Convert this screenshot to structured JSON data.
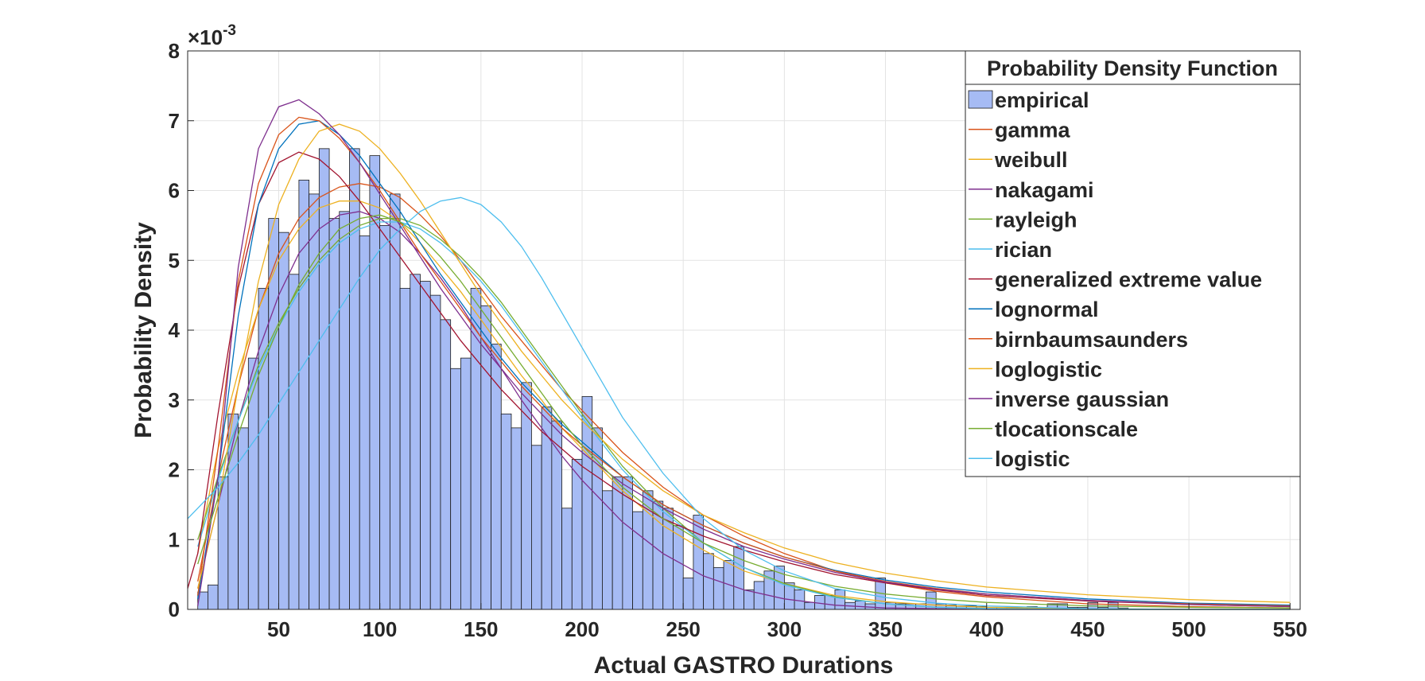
{
  "chart_data": {
    "type": "bar",
    "xlabel": "Actual GASTRO Durations",
    "ylabel": "Probability Density",
    "y_exponent_label": "×10",
    "y_exponent_power": "-3",
    "xlim": [
      5,
      555
    ],
    "ylim": [
      0,
      8
    ],
    "xticks": [
      50,
      100,
      150,
      200,
      250,
      300,
      350,
      400,
      450,
      500,
      550
    ],
    "yticks": [
      0,
      1,
      2,
      3,
      4,
      5,
      6,
      7,
      8
    ],
    "xtick_labels": [
      "50",
      "100",
      "150",
      "200",
      "250",
      "300",
      "350",
      "400",
      "450",
      "500",
      "550"
    ],
    "ytick_labels": [
      "0",
      "1",
      "2",
      "3",
      "4",
      "5",
      "6",
      "7",
      "8"
    ],
    "grid": true,
    "legend_title": "Probability Density Function",
    "legend_position": "top-right",
    "histogram": {
      "name": "empirical",
      "color": "#a6bbf4",
      "start": 10,
      "bin_width": 5,
      "values": [
        0.25,
        0.35,
        1.9,
        2.8,
        2.6,
        3.6,
        4.6,
        5.6,
        5.4,
        4.8,
        6.15,
        5.95,
        6.6,
        5.6,
        5.7,
        6.6,
        5.35,
        6.5,
        5.5,
        5.95,
        4.6,
        4.8,
        4.7,
        4.5,
        4.15,
        3.45,
        3.6,
        4.6,
        4.35,
        3.8,
        2.8,
        2.6,
        3.25,
        2.35,
        2.9,
        2.7,
        1.45,
        2.15,
        3.05,
        2.6,
        1.7,
        1.9,
        1.9,
        1.4,
        1.7,
        1.55,
        1.45,
        1.2,
        0.45,
        1.35,
        0.8,
        0.6,
        0.7,
        0.9,
        0.28,
        0.4,
        0.55,
        0.62,
        0.38,
        0.28,
        0.1,
        0.2,
        0.2,
        0.28,
        0.1,
        0.12,
        0.08,
        0.45,
        0.1,
        0.08,
        0.08,
        0.08,
        0.25,
        0.08,
        0.06,
        0.05,
        0.05,
        0.04,
        0.03,
        0.03,
        0.03,
        0.03,
        0.04,
        0.03,
        0.08,
        0.08,
        0.03,
        0.03,
        0.1,
        0.03,
        0.1,
        0.02
      ]
    },
    "x": [
      5,
      10,
      20,
      30,
      40,
      50,
      60,
      70,
      80,
      90,
      100,
      110,
      120,
      130,
      140,
      150,
      160,
      170,
      180,
      190,
      200,
      220,
      240,
      260,
      280,
      300,
      325,
      350,
      375,
      400,
      450,
      500,
      550
    ],
    "series": [
      {
        "name": "gamma",
        "color": "#d95319",
        "values": [
          null,
          0.4,
          1.9,
          3.2,
          4.3,
          5.1,
          5.6,
          5.9,
          6.05,
          6.1,
          6.05,
          5.9,
          5.65,
          5.35,
          5.0,
          4.6,
          4.2,
          3.85,
          3.5,
          3.15,
          2.85,
          2.25,
          1.75,
          1.35,
          1.05,
          0.8,
          0.55,
          0.38,
          0.26,
          0.18,
          0.08,
          0.04,
          0.02
        ]
      },
      {
        "name": "weibull",
        "color": "#edb120",
        "values": [
          null,
          0.8,
          2.3,
          3.4,
          4.3,
          5.0,
          5.45,
          5.75,
          5.85,
          5.85,
          5.75,
          5.55,
          5.25,
          4.9,
          4.55,
          4.15,
          3.75,
          3.35,
          3.0,
          2.6,
          2.3,
          1.7,
          1.2,
          0.85,
          0.55,
          0.37,
          0.2,
          0.11,
          0.06,
          0.03,
          0.01,
          0.0,
          0.0
        ]
      },
      {
        "name": "nakagami",
        "color": "#7e2f8e",
        "values": [
          null,
          0.3,
          1.5,
          2.7,
          3.7,
          4.5,
          5.1,
          5.45,
          5.65,
          5.7,
          5.6,
          5.4,
          5.1,
          4.75,
          4.35,
          3.9,
          3.45,
          3.0,
          2.6,
          2.2,
          1.85,
          1.25,
          0.8,
          0.48,
          0.28,
          0.15,
          0.06,
          0.02,
          0.01,
          0.0,
          0.0,
          0.0,
          0.0
        ]
      },
      {
        "name": "rayleigh",
        "color": "#77ac30",
        "values": [
          null,
          1.0,
          1.9,
          2.7,
          3.5,
          4.1,
          4.6,
          5.0,
          5.3,
          5.5,
          5.6,
          5.6,
          5.5,
          5.3,
          5.05,
          4.75,
          4.4,
          4.0,
          3.6,
          3.2,
          2.8,
          2.05,
          1.45,
          0.95,
          0.6,
          0.37,
          0.18,
          0.08,
          0.03,
          0.01,
          0.0,
          0.0,
          0.0
        ]
      },
      {
        "name": "rician",
        "color": "#4dbeee",
        "values": [
          null,
          0.9,
          1.85,
          2.7,
          3.45,
          4.05,
          4.55,
          4.95,
          5.25,
          5.45,
          5.55,
          5.55,
          5.45,
          5.25,
          5.0,
          4.7,
          4.35,
          3.95,
          3.55,
          3.15,
          2.75,
          2.0,
          1.4,
          0.95,
          0.6,
          0.35,
          0.17,
          0.08,
          0.03,
          0.01,
          0.0,
          0.0,
          0.0
        ]
      },
      {
        "name": "generalized extreme value",
        "color": "#a2142f",
        "values": [
          0.3,
          0.8,
          2.8,
          4.6,
          5.8,
          6.4,
          6.55,
          6.45,
          6.2,
          5.85,
          5.45,
          5.05,
          4.65,
          4.25,
          3.85,
          3.5,
          3.15,
          2.85,
          2.55,
          2.3,
          2.05,
          1.65,
          1.3,
          1.05,
          0.85,
          0.68,
          0.5,
          0.38,
          0.28,
          0.2,
          0.12,
          0.07,
          0.04
        ]
      },
      {
        "name": "lognormal",
        "color": "#0072bd",
        "values": [
          null,
          0.15,
          1.9,
          4.2,
          5.8,
          6.6,
          6.95,
          7.0,
          6.8,
          6.5,
          6.1,
          5.7,
          5.25,
          4.8,
          4.4,
          4.0,
          3.6,
          3.25,
          2.95,
          2.65,
          2.4,
          1.9,
          1.5,
          1.2,
          0.95,
          0.75,
          0.56,
          0.42,
          0.32,
          0.25,
          0.15,
          0.09,
          0.06
        ]
      },
      {
        "name": "birnbaumsaunders",
        "color": "#d95319",
        "values": [
          null,
          0.2,
          2.3,
          4.7,
          6.1,
          6.8,
          7.05,
          7.0,
          6.75,
          6.4,
          6.0,
          5.55,
          5.1,
          4.7,
          4.3,
          3.9,
          3.55,
          3.2,
          2.9,
          2.6,
          2.35,
          1.9,
          1.5,
          1.2,
          0.95,
          0.75,
          0.55,
          0.4,
          0.3,
          0.22,
          0.13,
          0.08,
          0.05
        ]
      },
      {
        "name": "loglogistic",
        "color": "#edb120",
        "values": [
          null,
          0.3,
          1.5,
          3.2,
          4.7,
          5.8,
          6.45,
          6.85,
          6.95,
          6.85,
          6.6,
          6.25,
          5.85,
          5.4,
          4.95,
          4.5,
          4.1,
          3.7,
          3.35,
          3.0,
          2.7,
          2.15,
          1.7,
          1.35,
          1.1,
          0.88,
          0.67,
          0.52,
          0.41,
          0.32,
          0.21,
          0.14,
          0.1
        ]
      },
      {
        "name": "inverse gaussian",
        "color": "#7e2f8e",
        "values": [
          null,
          0.05,
          1.9,
          4.9,
          6.6,
          7.2,
          7.3,
          7.1,
          6.8,
          6.4,
          5.95,
          5.5,
          5.05,
          4.6,
          4.2,
          3.8,
          3.45,
          3.1,
          2.8,
          2.5,
          2.25,
          1.8,
          1.45,
          1.15,
          0.9,
          0.72,
          0.53,
          0.39,
          0.29,
          0.22,
          0.13,
          0.07,
          0.04
        ]
      },
      {
        "name": "tlocationscale",
        "color": "#77ac30",
        "values": [
          null,
          0.65,
          1.6,
          2.5,
          3.35,
          4.05,
          4.65,
          5.1,
          5.45,
          5.6,
          5.65,
          5.55,
          5.35,
          5.05,
          4.7,
          4.3,
          3.9,
          3.5,
          3.1,
          2.7,
          2.35,
          1.75,
          1.3,
          0.95,
          0.7,
          0.5,
          0.33,
          0.22,
          0.15,
          0.1,
          0.05,
          0.03,
          0.02
        ]
      },
      {
        "name": "logistic",
        "color": "#4dbeee",
        "values": [
          1.3,
          1.45,
          1.75,
          2.1,
          2.5,
          2.95,
          3.4,
          3.85,
          4.3,
          4.75,
          5.15,
          5.45,
          5.7,
          5.85,
          5.9,
          5.8,
          5.55,
          5.2,
          4.75,
          4.25,
          3.75,
          2.75,
          1.95,
          1.3,
          0.85,
          0.55,
          0.3,
          0.17,
          0.09,
          0.05,
          0.01,
          0.0,
          0.0
        ]
      }
    ]
  }
}
